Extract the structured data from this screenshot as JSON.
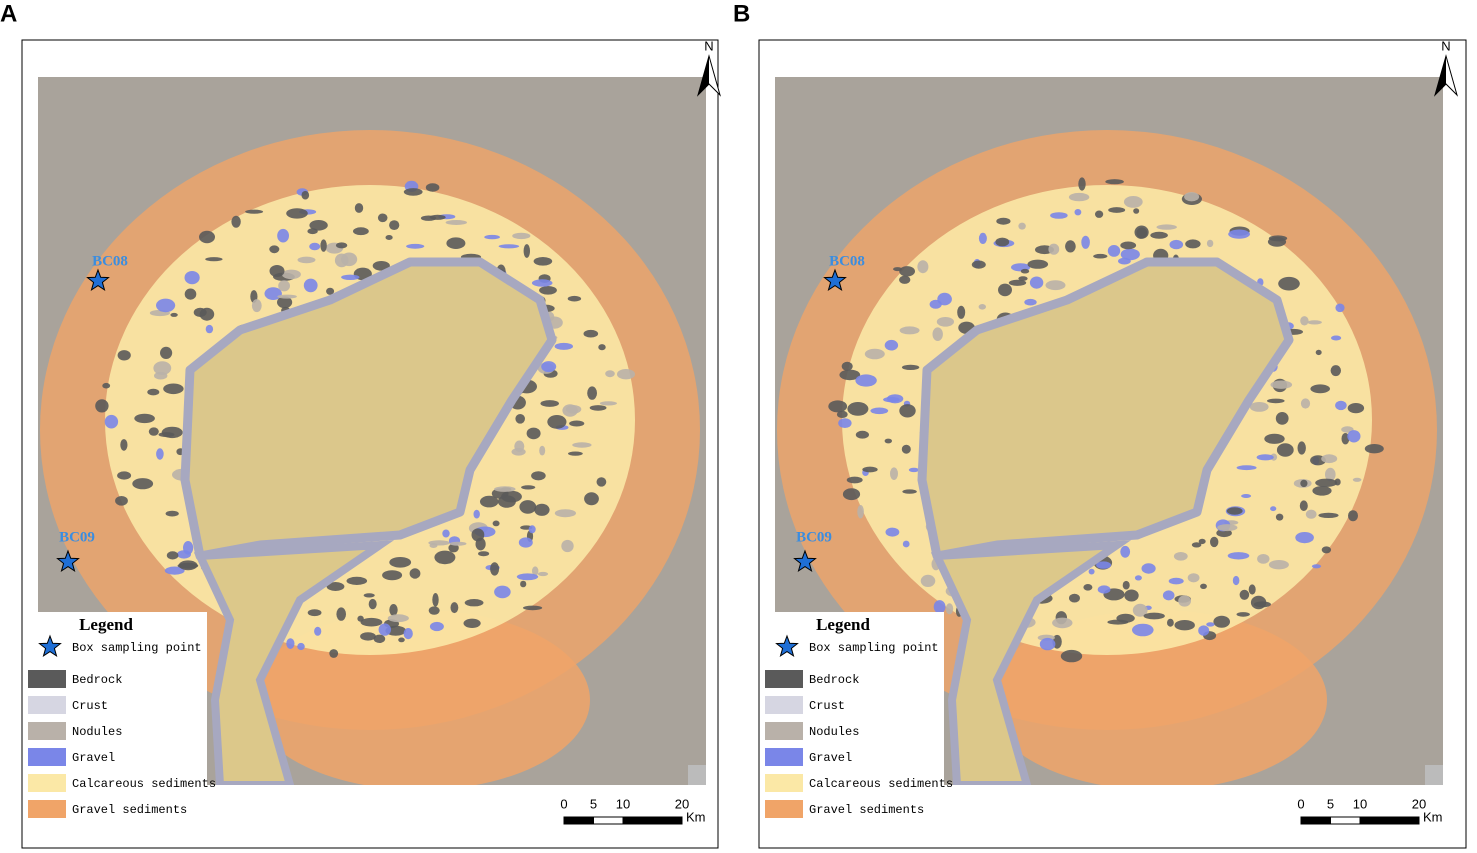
{
  "panels": [
    {
      "label": "A",
      "north": "N",
      "stations": [
        {
          "name": "BC08"
        },
        {
          "name": "BC09"
        }
      ],
      "legend": {
        "title": "Legend",
        "point": "Box sampling point",
        "items": [
          {
            "name": "Bedrock",
            "color": "#5a5a5a"
          },
          {
            "name": "Crust",
            "color": "#d6d6e2"
          },
          {
            "name": "Nodules",
            "color": "#b9b1a9"
          },
          {
            "name": "Gravel",
            "color": "#7a86e8"
          },
          {
            "name": "Calcareous sediments",
            "color": "#fbe8a6"
          },
          {
            "name": "Gravel sediments",
            "color": "#f0a468"
          }
        ]
      },
      "scale": {
        "ticks": [
          0,
          5,
          10,
          20
        ],
        "unit": "Km"
      }
    },
    {
      "label": "B",
      "north": "N",
      "stations": [
        {
          "name": "BC08"
        },
        {
          "name": "BC09"
        }
      ],
      "legend": {
        "title": "Legend",
        "point": "Box sampling point",
        "items": [
          {
            "name": "Bedrock",
            "color": "#5a5a5a"
          },
          {
            "name": "Crust",
            "color": "#d6d6e2"
          },
          {
            "name": "Nodules",
            "color": "#b9b1a9"
          },
          {
            "name": "Gravel",
            "color": "#7a86e8"
          },
          {
            "name": "Calcareous sediments",
            "color": "#fbe8a6"
          },
          {
            "name": "Gravel sediments",
            "color": "#f0a468"
          }
        ]
      },
      "scale": {
        "ticks": [
          0,
          5,
          10,
          20
        ],
        "unit": "Km"
      }
    }
  ]
}
